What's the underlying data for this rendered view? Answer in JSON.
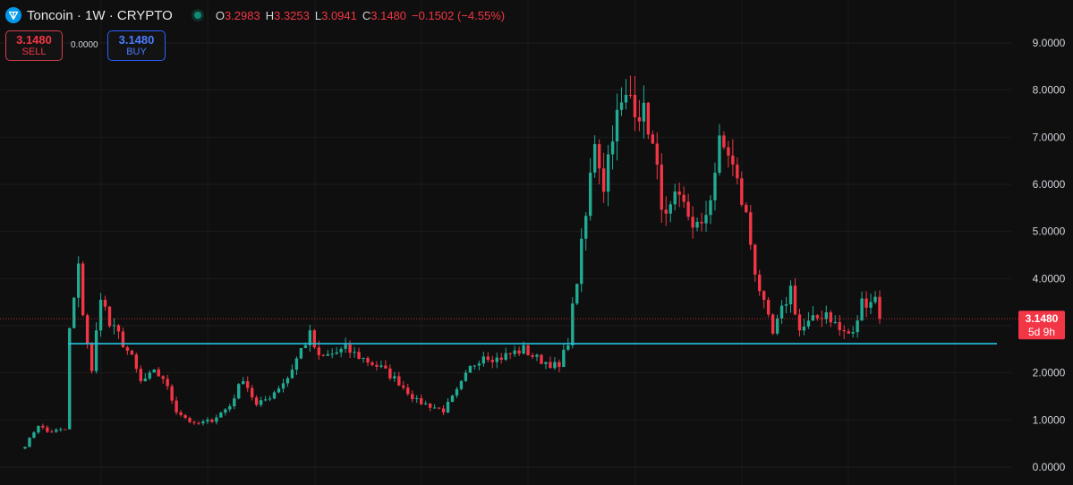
{
  "header": {
    "title": "Toncoin · 1W · CRYPTO",
    "ohlc": [
      {
        "key": "O",
        "value": "3.2983"
      },
      {
        "key": "H",
        "value": "3.3253"
      },
      {
        "key": "L",
        "value": "3.0941"
      },
      {
        "key": "C",
        "value": "3.1480"
      }
    ],
    "change": "−0.1502 (−4.55%)"
  },
  "trade": {
    "sell_price": "3.1480",
    "sell_label": "SELL",
    "spread": "0.0000",
    "buy_price": "3.1480",
    "buy_label": "BUY"
  },
  "colors": {
    "up": "#22ab94",
    "down": "#f23645",
    "support_line": "#27c2e0",
    "background": "#0f0f0f"
  },
  "chart_data": {
    "type": "candlestick",
    "interval": "1W",
    "symbol": "Toncoin",
    "y_ticks": [
      "9.0000",
      "8.0000",
      "7.0000",
      "6.0000",
      "5.0000",
      "4.0000",
      "3.0000",
      "2.0000",
      "1.0000",
      "0.0000"
    ],
    "ylim": [
      -0.15,
      9.5
    ],
    "grid": true,
    "current_price": {
      "value": 3.148,
      "label": "3.1480",
      "countdown": "5d 9h"
    },
    "support_level": 2.62,
    "anchors": [
      [
        0,
        0.45
      ],
      [
        3,
        0.9
      ],
      [
        5,
        0.75
      ],
      [
        9,
        0.8
      ],
      [
        10,
        2.9
      ],
      [
        12,
        4.2
      ],
      [
        13,
        3.3
      ],
      [
        15,
        2.0
      ],
      [
        17,
        3.7
      ],
      [
        19,
        3.0
      ],
      [
        21,
        2.8
      ],
      [
        24,
        2.3
      ],
      [
        26,
        1.8
      ],
      [
        29,
        2.0
      ],
      [
        31,
        1.9
      ],
      [
        34,
        1.2
      ],
      [
        38,
        0.9
      ],
      [
        42,
        1.0
      ],
      [
        46,
        1.3
      ],
      [
        49,
        1.9
      ],
      [
        52,
        1.3
      ],
      [
        55,
        1.5
      ],
      [
        59,
        1.9
      ],
      [
        62,
        2.5
      ],
      [
        64,
        2.8
      ],
      [
        66,
        2.3
      ],
      [
        69,
        2.4
      ],
      [
        72,
        2.5
      ],
      [
        76,
        2.3
      ],
      [
        80,
        2.1
      ],
      [
        84,
        1.8
      ],
      [
        88,
        1.4
      ],
      [
        91,
        1.3
      ],
      [
        94,
        1.2
      ],
      [
        97,
        1.6
      ],
      [
        100,
        2.1
      ],
      [
        103,
        2.4
      ],
      [
        106,
        2.3
      ],
      [
        109,
        2.4
      ],
      [
        112,
        2.5
      ],
      [
        115,
        2.3
      ],
      [
        118,
        2.2
      ],
      [
        120,
        2.1
      ],
      [
        122,
        2.7
      ],
      [
        124,
        4.0
      ],
      [
        126,
        5.3
      ],
      [
        128,
        7.0
      ],
      [
        130,
        6.0
      ],
      [
        132,
        7.2
      ],
      [
        134,
        7.6
      ],
      [
        136,
        7.9
      ],
      [
        138,
        7.6
      ],
      [
        140,
        7.3
      ],
      [
        142,
        6.2
      ],
      [
        144,
        5.2
      ],
      [
        146,
        5.6
      ],
      [
        148,
        5.5
      ],
      [
        150,
        5.2
      ],
      [
        152,
        5.0
      ],
      [
        154,
        5.8
      ],
      [
        156,
        6.8
      ],
      [
        158,
        6.7
      ],
      [
        160,
        6.0
      ],
      [
        162,
        5.3
      ],
      [
        164,
        4.2
      ],
      [
        166,
        3.4
      ],
      [
        168,
        2.8
      ],
      [
        170,
        3.3
      ],
      [
        172,
        3.8
      ],
      [
        174,
        2.9
      ],
      [
        177,
        3.1
      ],
      [
        180,
        3.3
      ],
      [
        183,
        2.9
      ],
      [
        186,
        2.8
      ],
      [
        188,
        3.5
      ],
      [
        191,
        3.6
      ],
      [
        192,
        3.15
      ]
    ]
  }
}
